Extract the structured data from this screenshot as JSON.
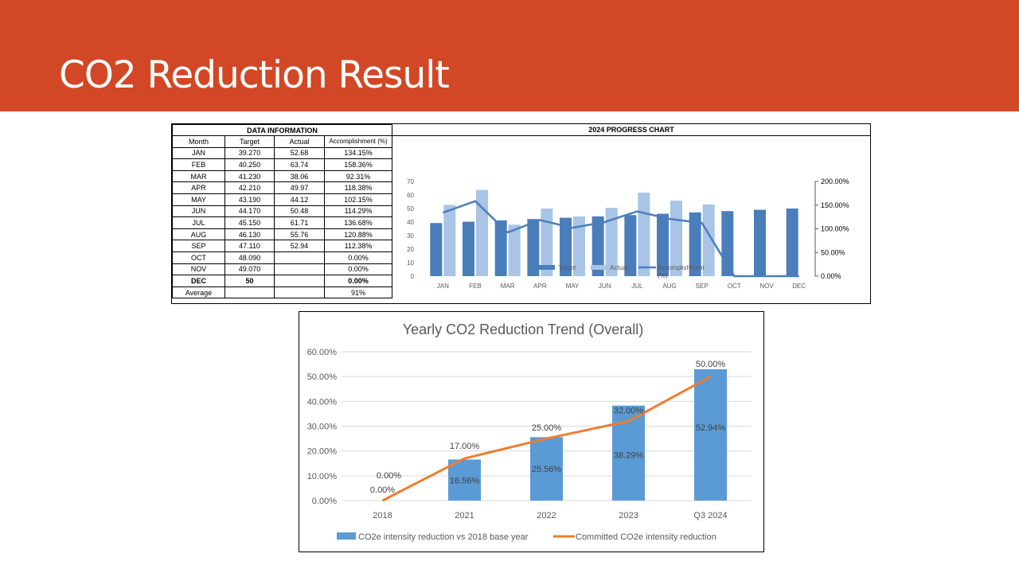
{
  "title": "CO2 Reduction Result",
  "table": {
    "title": "DATA INFORMATION",
    "headers": [
      "Month",
      "Target",
      "Actual",
      "Accomplishment (%)"
    ],
    "rows": [
      [
        "JAN",
        "39.270",
        "52.68",
        "134.15%"
      ],
      [
        "FEB",
        "40.250",
        "63.74",
        "158.36%"
      ],
      [
        "MAR",
        "41.230",
        "38.06",
        "92.31%"
      ],
      [
        "APR",
        "42.210",
        "49.97",
        "118.38%"
      ],
      [
        "MAY",
        "43.190",
        "44.12",
        "102.15%"
      ],
      [
        "JUN",
        "44.170",
        "50.48",
        "114.29%"
      ],
      [
        "JUL",
        "45.150",
        "61.71",
        "136.68%"
      ],
      [
        "AUG",
        "46.130",
        "55.76",
        "120.88%"
      ],
      [
        "SEP",
        "47.110",
        "52.94",
        "112.38%"
      ],
      [
        "OCT",
        "48.090",
        "",
        "0.00%"
      ],
      [
        "NOV",
        "49.070",
        "",
        "0.00%"
      ],
      [
        "DEC",
        "50",
        "",
        "0.00%"
      ]
    ],
    "average_label": "Average",
    "average_value": "91%"
  },
  "chart_data": [
    {
      "type": "bar",
      "title": "2024 PROGRESS CHART",
      "categories": [
        "JAN",
        "FEB",
        "MAR",
        "APR",
        "MAY",
        "JUN",
        "JUL",
        "AUG",
        "SEP",
        "OCT",
        "NOV",
        "DEC"
      ],
      "series": [
        {
          "name": "Target",
          "kind": "bar",
          "axis": "left",
          "color": "#4A7EBB",
          "values": [
            39.27,
            40.25,
            41.23,
            42.21,
            43.19,
            44.17,
            45.15,
            46.13,
            47.11,
            48.09,
            49.07,
            50
          ]
        },
        {
          "name": "Actual",
          "kind": "bar",
          "axis": "left",
          "color": "#A9C4E6",
          "values": [
            52.68,
            63.74,
            38.06,
            49.97,
            44.12,
            50.48,
            61.71,
            55.76,
            52.94,
            null,
            null,
            null
          ]
        },
        {
          "name": "Accomplishment (%)",
          "kind": "line",
          "axis": "right",
          "color": "#4A7EBB",
          "values": [
            134.15,
            158.36,
            92.31,
            118.38,
            102.15,
            114.29,
            136.68,
            120.88,
            112.38,
            0,
            0,
            0
          ]
        }
      ],
      "ylim": [
        0,
        70
      ],
      "yticks": [
        "0",
        "10",
        "20",
        "30",
        "40",
        "50",
        "60",
        "70"
      ],
      "y2lim": [
        0,
        200
      ],
      "y2ticks": [
        "0.00%",
        "50.00%",
        "100.00%",
        "150.00%",
        "200.00%"
      ],
      "legend": "bottom"
    },
    {
      "type": "bar",
      "title": "Yearly CO2 Reduction Trend (Overall)",
      "categories": [
        "2018",
        "2021",
        "2022",
        "2023",
        "Q3 2024"
      ],
      "series": [
        {
          "name": "CO2e intensity reduction vs 2018 base year",
          "kind": "bar",
          "color": "#5B9BD5",
          "values": [
            0,
            16.56,
            25.56,
            38.29,
            52.94
          ],
          "labels": [
            "0.00%",
            "16.56%",
            "25.56%",
            "38.29%",
            "52.94%"
          ]
        },
        {
          "name": "Committed CO2e intensity reduction",
          "kind": "line",
          "color": "#ED7D31",
          "values": [
            0,
            17,
            25,
            32,
            50
          ],
          "labels": [
            "0.00%",
            "17.00%",
            "25.00%",
            "32.00%",
            "50.00%"
          ]
        }
      ],
      "ylim": [
        0,
        60
      ],
      "yticks": [
        "0.00%",
        "10.00%",
        "20.00%",
        "30.00%",
        "40.00%",
        "50.00%",
        "60.00%"
      ],
      "grid": true,
      "legend": "bottom"
    }
  ]
}
